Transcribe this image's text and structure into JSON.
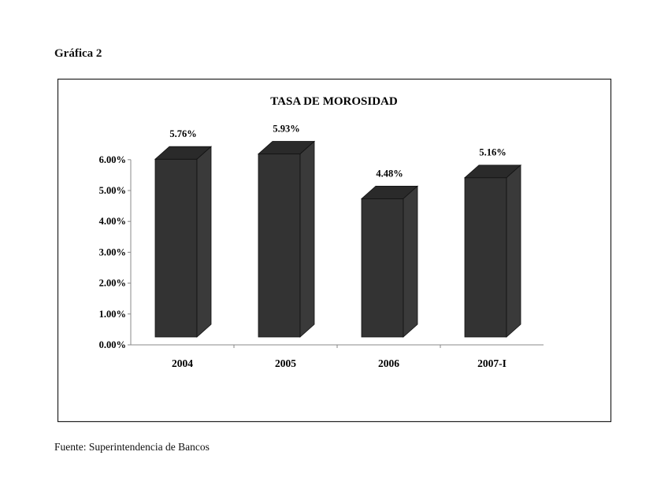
{
  "caption": "Gráfica 2",
  "source": "Fuente: Superintendencia de Bancos",
  "chart_data": {
    "type": "bar",
    "title": "TASA DE MOROSIDAD",
    "categories": [
      "2004",
      "2005",
      "2006",
      "2007-I"
    ],
    "values": [
      5.76,
      5.93,
      4.48,
      5.16
    ],
    "data_labels": [
      "5.76%",
      "5.93%",
      "4.48%",
      "5.16%"
    ],
    "ylim": [
      0,
      6
    ],
    "yticks": [
      "0.00%",
      "1.00%",
      "2.00%",
      "3.00%",
      "4.00%",
      "5.00%",
      "6.00%"
    ],
    "xlabel": "",
    "ylabel": "",
    "grid": false,
    "style": "3d-column",
    "bar_color": "#333333"
  }
}
